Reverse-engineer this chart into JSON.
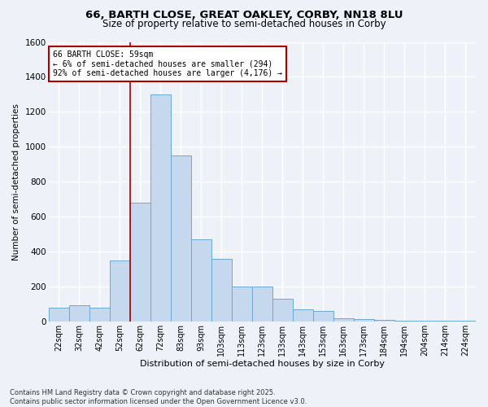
{
  "title_line1": "66, BARTH CLOSE, GREAT OAKLEY, CORBY, NN18 8LU",
  "title_line2": "Size of property relative to semi-detached houses in Corby",
  "xlabel": "Distribution of semi-detached houses by size in Corby",
  "ylabel": "Number of semi-detached properties",
  "categories": [
    "22sqm",
    "32sqm",
    "42sqm",
    "52sqm",
    "62sqm",
    "72sqm",
    "83sqm",
    "93sqm",
    "103sqm",
    "113sqm",
    "123sqm",
    "133sqm",
    "143sqm",
    "153sqm",
    "163sqm",
    "173sqm",
    "184sqm",
    "194sqm",
    "204sqm",
    "214sqm",
    "224sqm"
  ],
  "values": [
    80,
    90,
    80,
    350,
    680,
    1300,
    950,
    470,
    360,
    200,
    200,
    130,
    70,
    60,
    20,
    15,
    10,
    5,
    3,
    3,
    2
  ],
  "bar_color": "#c5d8ed",
  "bar_edge_color": "#6aaad4",
  "vline_index": 4,
  "vline_color": "#aa0000",
  "marker_label": "66 BARTH CLOSE: 59sqm",
  "annotation_line1": "← 6% of semi-detached houses are smaller (294)",
  "annotation_line2": "92% of semi-detached houses are larger (4,176) →",
  "annotation_box_edge_color": "#aa0000",
  "background_color": "#eef2f8",
  "grid_color": "#ffffff",
  "ylim": [
    0,
    1600
  ],
  "yticks": [
    0,
    200,
    400,
    600,
    800,
    1000,
    1200,
    1400,
    1600
  ],
  "footnote_line1": "Contains HM Land Registry data © Crown copyright and database right 2025.",
  "footnote_line2": "Contains public sector information licensed under the Open Government Licence v3.0."
}
